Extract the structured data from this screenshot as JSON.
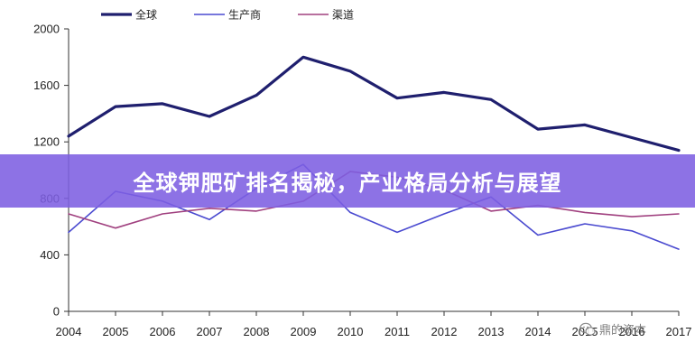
{
  "chart_data": {
    "type": "line",
    "categories": [
      "2004",
      "2005",
      "2006",
      "2007",
      "2008",
      "2009",
      "2010",
      "2011",
      "2012",
      "2013",
      "2014",
      "2015",
      "2016",
      "2017"
    ],
    "x_tick_labels": [
      "2004",
      "2005",
      "2006",
      "2007",
      "2008",
      "2009",
      "2010",
      "2011",
      "2012",
      "2013",
      "2014",
      "2015",
      "2016",
      "2017"
    ],
    "y_ticks": [
      0,
      400,
      800,
      1200,
      1600,
      2000
    ],
    "ylim": [
      0,
      2000
    ],
    "grid": false,
    "legend_position": "top",
    "series": [
      {
        "name": "全球",
        "color": "#1f1f6e",
        "width": 3.2,
        "values": [
          1240,
          1450,
          1470,
          1380,
          1530,
          1800,
          1700,
          1510,
          1550,
          1500,
          1290,
          1320,
          1230,
          1140
        ]
      },
      {
        "name": "生产商",
        "color": "#4a4ad0",
        "width": 1.6,
        "values": [
          560,
          850,
          780,
          650,
          870,
          1040,
          700,
          560,
          690,
          810,
          540,
          620,
          570,
          440
        ]
      },
      {
        "name": "渠道",
        "color": "#a0407f",
        "width": 1.6,
        "values": [
          690,
          590,
          690,
          730,
          710,
          780,
          990,
          950,
          860,
          710,
          750,
          700,
          670,
          690
        ]
      }
    ]
  },
  "banner": {
    "title": "全球钾肥矿排名揭秘，产业格局分析与展望"
  },
  "watermark": {
    "text": "鼎的资本",
    "icon": "wechat-icon"
  }
}
